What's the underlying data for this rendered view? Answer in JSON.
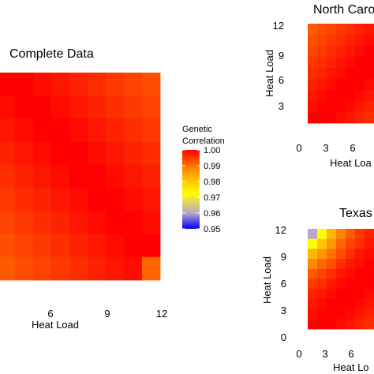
{
  "chart_data": [
    {
      "type": "heatmap",
      "title": "Complete Data",
      "xlabel": "Heat Load",
      "ylabel": "",
      "x_ticks": [
        "6",
        "9",
        "12"
      ],
      "y_ticks": [],
      "xlim": [
        0,
        12
      ],
      "ylim": [
        0,
        12
      ],
      "grid": false,
      "values": [
        [
          1.0,
          1.0,
          0.999,
          0.998,
          0.997,
          0.996,
          0.995,
          0.994,
          0.993
        ],
        [
          0.999,
          1.0,
          1.0,
          0.999,
          0.998,
          0.997,
          0.996,
          0.995,
          0.994
        ],
        [
          0.998,
          0.999,
          1.0,
          1.0,
          0.999,
          0.998,
          0.997,
          0.996,
          0.995
        ],
        [
          0.997,
          0.998,
          0.999,
          1.0,
          1.0,
          0.999,
          0.998,
          0.997,
          0.996
        ],
        [
          0.996,
          0.997,
          0.998,
          0.999,
          1.0,
          1.0,
          0.999,
          0.998,
          0.997
        ],
        [
          0.995,
          0.996,
          0.997,
          0.998,
          0.999,
          1.0,
          1.0,
          0.999,
          0.998
        ],
        [
          0.994,
          0.995,
          0.996,
          0.997,
          0.998,
          0.999,
          1.0,
          1.0,
          0.999
        ],
        [
          0.993,
          0.994,
          0.995,
          0.996,
          0.997,
          0.998,
          0.999,
          1.0,
          1.0
        ],
        [
          0.992,
          0.993,
          0.994,
          0.995,
          0.996,
          0.997,
          0.998,
          0.999,
          0.991
        ]
      ]
    },
    {
      "type": "heatmap",
      "title": "North Caro",
      "xlabel": "Heat Loa",
      "ylabel": "Heat Load",
      "x_ticks": [
        "0",
        "3",
        "6"
      ],
      "y_ticks": [
        "3",
        "6",
        "9",
        "12"
      ],
      "xlim": [
        0,
        12
      ],
      "ylim": [
        0,
        12
      ],
      "grid": false,
      "values": [
        [
          0.992,
          0.993,
          0.994,
          0.995,
          0.996,
          0.997,
          0.998
        ],
        [
          0.993,
          0.994,
          0.995,
          0.996,
          0.997,
          0.998,
          0.999
        ],
        [
          0.994,
          0.995,
          0.996,
          0.997,
          0.998,
          0.999,
          1.0
        ],
        [
          0.995,
          0.996,
          0.997,
          0.998,
          0.999,
          1.0,
          1.0
        ],
        [
          0.996,
          0.997,
          0.998,
          0.999,
          1.0,
          1.0,
          1.0
        ],
        [
          0.997,
          0.998,
          0.999,
          1.0,
          1.0,
          1.0,
          0.999
        ],
        [
          0.998,
          0.999,
          1.0,
          1.0,
          1.0,
          0.999,
          0.998
        ],
        [
          0.999,
          1.0,
          1.0,
          1.0,
          0.999,
          0.998,
          0.997
        ],
        [
          1.0,
          1.0,
          1.0,
          0.999,
          0.998,
          0.997,
          0.996
        ]
      ]
    },
    {
      "type": "heatmap",
      "title": "Texas",
      "xlabel": "Heat Lo",
      "ylabel": "Heat Load",
      "x_ticks": [
        "0",
        "3",
        "6"
      ],
      "y_ticks": [
        "0",
        "3",
        "6",
        "9",
        "12"
      ],
      "xlim": [
        0,
        12
      ],
      "ylim": [
        0,
        12
      ],
      "grid": false,
      "values": [
        [
          0.96,
          0.972,
          0.982,
          0.988,
          0.992,
          0.995,
          0.997
        ],
        [
          0.972,
          0.98,
          0.986,
          0.991,
          0.994,
          0.996,
          0.998
        ],
        [
          0.982,
          0.986,
          0.99,
          0.993,
          0.996,
          0.998,
          0.999
        ],
        [
          0.988,
          0.991,
          0.993,
          0.996,
          0.998,
          0.999,
          1.0
        ],
        [
          0.992,
          0.994,
          0.996,
          0.998,
          0.999,
          1.0,
          1.0
        ],
        [
          0.995,
          0.996,
          0.998,
          0.999,
          1.0,
          1.0,
          1.0
        ],
        [
          0.997,
          0.998,
          0.999,
          1.0,
          1.0,
          1.0,
          0.999
        ],
        [
          0.998,
          0.999,
          1.0,
          1.0,
          1.0,
          0.999,
          0.998
        ],
        [
          0.999,
          1.0,
          1.0,
          1.0,
          0.999,
          0.998,
          0.997
        ],
        [
          1.0,
          1.0,
          1.0,
          0.999,
          0.998,
          0.997,
          0.996
        ]
      ]
    }
  ],
  "legend": {
    "title_line1": "Genetic",
    "title_line2": "Correlation",
    "labels": [
      "1.00",
      "0.99",
      "0.98",
      "0.97",
      "0.96",
      "0.95"
    ],
    "range": [
      0.95,
      1.0
    ],
    "colors": [
      "#0000ff",
      "#b9a6c9",
      "#ffff00",
      "#ff8c00",
      "#ff0000"
    ]
  }
}
